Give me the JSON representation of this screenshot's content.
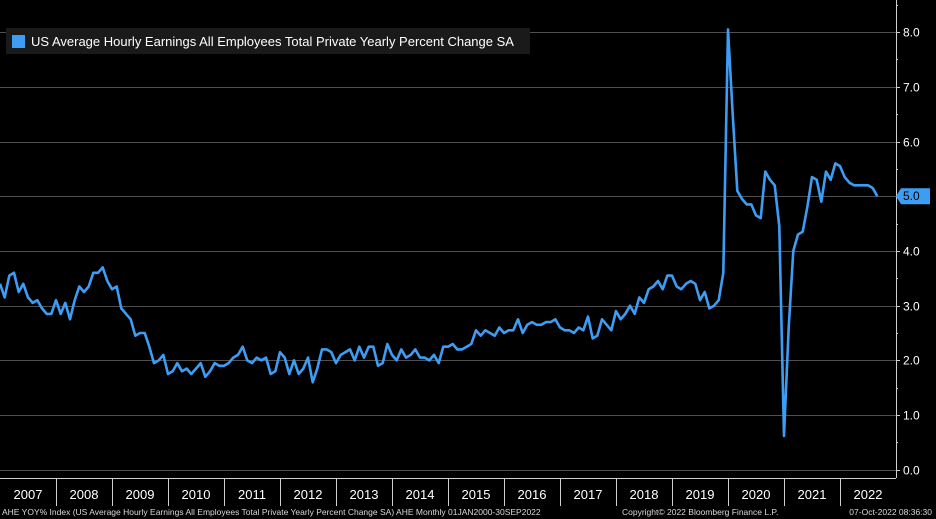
{
  "legend": {
    "label": "US Average Hourly Earnings All Employees Total Private Yearly Percent Change SA",
    "color": "#3d9df5"
  },
  "footer": {
    "left": "AHE YOY% Index (US Average Hourly Earnings All Employees Total Private Yearly Percent Change SA) AHE  Monthly 01JAN2000-30SEP2022",
    "middle": "Copyright© 2022 Bloomberg Finance L.P.",
    "right": "07-Oct-2022 08:36:30"
  },
  "chart_data": {
    "type": "line",
    "x_ticks": [
      "2007",
      "2008",
      "2009",
      "2010",
      "2011",
      "2012",
      "2013",
      "2014",
      "2015",
      "2016",
      "2017",
      "2018",
      "2019",
      "2020",
      "2021",
      "2022"
    ],
    "y_ticks": [
      "0.0",
      "1.0",
      "2.0",
      "3.0",
      "4.0",
      "5.0",
      "6.0",
      "7.0",
      "8.0"
    ],
    "ylim": [
      -0.15,
      8.55
    ],
    "xlim": [
      "2007-01",
      "2022-12"
    ],
    "grid": true,
    "last_value_label": "5.0",
    "series": [
      {
        "values": [
          [
            "2007-01",
            3.4
          ],
          [
            "2007-02",
            3.15
          ],
          [
            "2007-03",
            3.55
          ],
          [
            "2007-04",
            3.6
          ],
          [
            "2007-05",
            3.25
          ],
          [
            "2007-06",
            3.4
          ],
          [
            "2007-07",
            3.15
          ],
          [
            "2007-08",
            3.05
          ],
          [
            "2007-09",
            3.1
          ],
          [
            "2007-10",
            2.95
          ],
          [
            "2007-11",
            2.85
          ],
          [
            "2007-12",
            2.85
          ],
          [
            "2008-01",
            3.1
          ],
          [
            "2008-02",
            2.85
          ],
          [
            "2008-03",
            3.05
          ],
          [
            "2008-04",
            2.75
          ],
          [
            "2008-05",
            3.1
          ],
          [
            "2008-06",
            3.35
          ],
          [
            "2008-07",
            3.25
          ],
          [
            "2008-08",
            3.35
          ],
          [
            "2008-09",
            3.6
          ],
          [
            "2008-10",
            3.6
          ],
          [
            "2008-11",
            3.7
          ],
          [
            "2008-12",
            3.45
          ],
          [
            "2009-01",
            3.3
          ],
          [
            "2009-02",
            3.35
          ],
          [
            "2009-03",
            2.95
          ],
          [
            "2009-04",
            2.85
          ],
          [
            "2009-05",
            2.75
          ],
          [
            "2009-06",
            2.45
          ],
          [
            "2009-07",
            2.5
          ],
          [
            "2009-08",
            2.5
          ],
          [
            "2009-09",
            2.25
          ],
          [
            "2009-10",
            1.95
          ],
          [
            "2009-11",
            2.0
          ],
          [
            "2009-12",
            2.1
          ],
          [
            "2010-01",
            1.75
          ],
          [
            "2010-02",
            1.8
          ],
          [
            "2010-03",
            1.95
          ],
          [
            "2010-04",
            1.8
          ],
          [
            "2010-05",
            1.85
          ],
          [
            "2010-06",
            1.75
          ],
          [
            "2010-07",
            1.85
          ],
          [
            "2010-08",
            1.95
          ],
          [
            "2010-09",
            1.7
          ],
          [
            "2010-10",
            1.8
          ],
          [
            "2010-11",
            1.95
          ],
          [
            "2010-12",
            1.9
          ],
          [
            "2011-01",
            1.9
          ],
          [
            "2011-02",
            1.95
          ],
          [
            "2011-03",
            2.05
          ],
          [
            "2011-04",
            2.1
          ],
          [
            "2011-05",
            2.25
          ],
          [
            "2011-06",
            2.0
          ],
          [
            "2011-07",
            1.95
          ],
          [
            "2011-08",
            2.05
          ],
          [
            "2011-09",
            2.0
          ],
          [
            "2011-10",
            2.05
          ],
          [
            "2011-11",
            1.75
          ],
          [
            "2011-12",
            1.8
          ],
          [
            "2012-01",
            2.15
          ],
          [
            "2012-02",
            2.05
          ],
          [
            "2012-03",
            1.75
          ],
          [
            "2012-04",
            2.0
          ],
          [
            "2012-05",
            1.75
          ],
          [
            "2012-06",
            1.85
          ],
          [
            "2012-07",
            2.05
          ],
          [
            "2012-08",
            1.6
          ],
          [
            "2012-09",
            1.85
          ],
          [
            "2012-10",
            2.2
          ],
          [
            "2012-11",
            2.2
          ],
          [
            "2012-12",
            2.15
          ],
          [
            "2013-01",
            1.95
          ],
          [
            "2013-02",
            2.1
          ],
          [
            "2013-03",
            2.15
          ],
          [
            "2013-04",
            2.2
          ],
          [
            "2013-05",
            2.0
          ],
          [
            "2013-06",
            2.25
          ],
          [
            "2013-07",
            2.05
          ],
          [
            "2013-08",
            2.25
          ],
          [
            "2013-09",
            2.25
          ],
          [
            "2013-10",
            1.9
          ],
          [
            "2013-11",
            1.95
          ],
          [
            "2013-12",
            2.3
          ],
          [
            "2014-01",
            2.1
          ],
          [
            "2014-02",
            2.0
          ],
          [
            "2014-03",
            2.2
          ],
          [
            "2014-04",
            2.05
          ],
          [
            "2014-05",
            2.1
          ],
          [
            "2014-06",
            2.2
          ],
          [
            "2014-07",
            2.05
          ],
          [
            "2014-08",
            2.05
          ],
          [
            "2014-09",
            2.0
          ],
          [
            "2014-10",
            2.1
          ],
          [
            "2014-11",
            1.95
          ],
          [
            "2014-12",
            2.25
          ],
          [
            "2015-01",
            2.25
          ],
          [
            "2015-02",
            2.3
          ],
          [
            "2015-03",
            2.2
          ],
          [
            "2015-04",
            2.2
          ],
          [
            "2015-05",
            2.25
          ],
          [
            "2015-06",
            2.3
          ],
          [
            "2015-07",
            2.55
          ],
          [
            "2015-08",
            2.45
          ],
          [
            "2015-09",
            2.55
          ],
          [
            "2015-10",
            2.5
          ],
          [
            "2015-11",
            2.45
          ],
          [
            "2015-12",
            2.6
          ],
          [
            "2016-01",
            2.5
          ],
          [
            "2016-02",
            2.55
          ],
          [
            "2016-03",
            2.55
          ],
          [
            "2016-04",
            2.75
          ],
          [
            "2016-05",
            2.5
          ],
          [
            "2016-06",
            2.65
          ],
          [
            "2016-07",
            2.7
          ],
          [
            "2016-08",
            2.65
          ],
          [
            "2016-09",
            2.65
          ],
          [
            "2016-10",
            2.7
          ],
          [
            "2016-11",
            2.7
          ],
          [
            "2016-12",
            2.75
          ],
          [
            "2017-01",
            2.6
          ],
          [
            "2017-02",
            2.55
          ],
          [
            "2017-03",
            2.55
          ],
          [
            "2017-04",
            2.5
          ],
          [
            "2017-05",
            2.6
          ],
          [
            "2017-06",
            2.55
          ],
          [
            "2017-07",
            2.8
          ],
          [
            "2017-08",
            2.4
          ],
          [
            "2017-09",
            2.45
          ],
          [
            "2017-10",
            2.75
          ],
          [
            "2017-11",
            2.65
          ],
          [
            "2017-12",
            2.55
          ],
          [
            "2018-01",
            2.9
          ],
          [
            "2018-02",
            2.75
          ],
          [
            "2018-03",
            2.85
          ],
          [
            "2018-04",
            3.0
          ],
          [
            "2018-05",
            2.85
          ],
          [
            "2018-06",
            3.15
          ],
          [
            "2018-07",
            3.05
          ],
          [
            "2018-08",
            3.3
          ],
          [
            "2018-09",
            3.35
          ],
          [
            "2018-10",
            3.45
          ],
          [
            "2018-11",
            3.3
          ],
          [
            "2018-12",
            3.55
          ],
          [
            "2019-01",
            3.55
          ],
          [
            "2019-02",
            3.35
          ],
          [
            "2019-03",
            3.3
          ],
          [
            "2019-04",
            3.4
          ],
          [
            "2019-05",
            3.45
          ],
          [
            "2019-06",
            3.4
          ],
          [
            "2019-07",
            3.1
          ],
          [
            "2019-08",
            3.25
          ],
          [
            "2019-09",
            2.95
          ],
          [
            "2019-10",
            3.0
          ],
          [
            "2019-11",
            3.1
          ],
          [
            "2019-12",
            3.6
          ],
          [
            "2020-01",
            8.05
          ],
          [
            "2020-02",
            6.5
          ],
          [
            "2020-03",
            5.1
          ],
          [
            "2020-04",
            4.95
          ],
          [
            "2020-05",
            4.85
          ],
          [
            "2020-06",
            4.85
          ],
          [
            "2020-07",
            4.65
          ],
          [
            "2020-08",
            4.6
          ],
          [
            "2020-09",
            5.45
          ],
          [
            "2020-10",
            5.3
          ],
          [
            "2020-11",
            5.2
          ],
          [
            "2020-12",
            4.45
          ],
          [
            "2021-01",
            0.62
          ],
          [
            "2021-02",
            2.6
          ],
          [
            "2021-03",
            4.0
          ],
          [
            "2021-04",
            4.3
          ],
          [
            "2021-05",
            4.35
          ],
          [
            "2021-06",
            4.8
          ],
          [
            "2021-07",
            5.35
          ],
          [
            "2021-08",
            5.3
          ],
          [
            "2021-09",
            4.9
          ],
          [
            "2021-10",
            5.45
          ],
          [
            "2021-11",
            5.3
          ],
          [
            "2021-12",
            5.6
          ],
          [
            "2022-01",
            5.55
          ],
          [
            "2022-02",
            5.35
          ],
          [
            "2022-03",
            5.25
          ],
          [
            "2022-04",
            5.2
          ],
          [
            "2022-05",
            5.2
          ],
          [
            "2022-06",
            5.2
          ],
          [
            "2022-07",
            5.2
          ],
          [
            "2022-08",
            5.15
          ],
          [
            "2022-09",
            5.0
          ]
        ]
      }
    ]
  }
}
